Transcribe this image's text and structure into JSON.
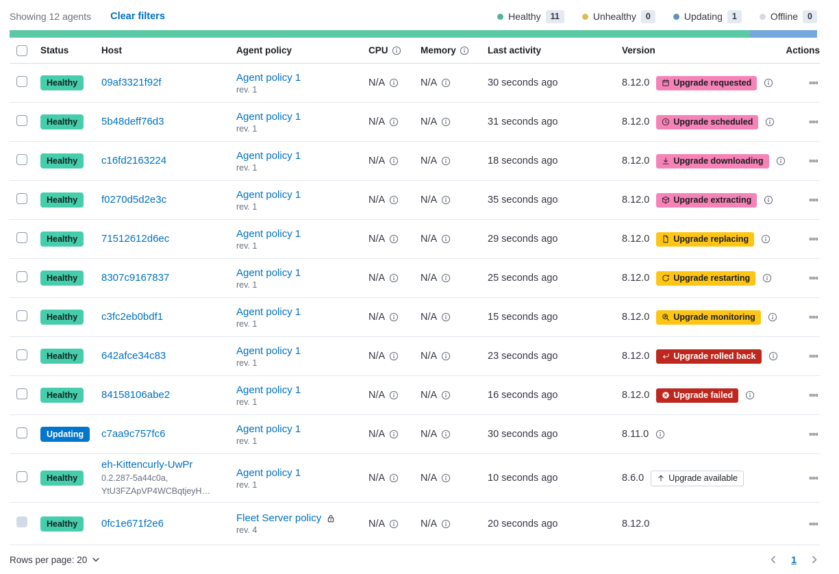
{
  "header": {
    "showing": "Showing 12 agents",
    "clear_filters": "Clear filters",
    "legend": [
      {
        "label": "Healthy",
        "count": "11",
        "color": "#54B399"
      },
      {
        "label": "Unhealthy",
        "count": "0",
        "color": "#D6BF57"
      },
      {
        "label": "Updating",
        "count": "1",
        "color": "#6092C0"
      },
      {
        "label": "Offline",
        "count": "0",
        "color": "#D3DAE6"
      }
    ],
    "health_bar": [
      {
        "color": "#5BC9A4",
        "fraction": 0.9167
      },
      {
        "color": "#74A7DB",
        "fraction": 0.0833
      }
    ]
  },
  "table": {
    "columns": [
      {
        "label": "",
        "type": "checkbox"
      },
      {
        "label": "Status"
      },
      {
        "label": "Host"
      },
      {
        "label": "Agent policy"
      },
      {
        "label": "CPU",
        "info": true
      },
      {
        "label": "Memory",
        "info": true
      },
      {
        "label": "Last activity"
      },
      {
        "label": "Version"
      },
      {
        "label": "Actions",
        "align": "right"
      }
    ],
    "rows": [
      {
        "status": "Healthy",
        "variant": "healthy",
        "host": "09af3321f92f",
        "host_sub": [],
        "policy": "Agent policy 1",
        "rev": "rev. 1",
        "locked": false,
        "cpu": "N/A",
        "memory": "N/A",
        "last_activity": "30 seconds ago",
        "version": "8.12.0",
        "badge": {
          "label": "Upgrade requested",
          "icon": "calendar",
          "variant": "accent"
        },
        "info": true,
        "checkbox_disabled": false
      },
      {
        "status": "Healthy",
        "variant": "healthy",
        "host": "5b48deff76d3",
        "host_sub": [],
        "policy": "Agent policy 1",
        "rev": "rev. 1",
        "locked": false,
        "cpu": "N/A",
        "memory": "N/A",
        "last_activity": "31 seconds ago",
        "version": "8.12.0",
        "badge": {
          "label": "Upgrade scheduled",
          "icon": "clock",
          "variant": "accent"
        },
        "info": true,
        "checkbox_disabled": false
      },
      {
        "status": "Healthy",
        "variant": "healthy",
        "host": "c16fd2163224",
        "host_sub": [],
        "policy": "Agent policy 1",
        "rev": "rev. 1",
        "locked": false,
        "cpu": "N/A",
        "memory": "N/A",
        "last_activity": "18 seconds ago",
        "version": "8.12.0",
        "badge": {
          "label": "Upgrade downloading",
          "icon": "download",
          "variant": "accent"
        },
        "info": true,
        "checkbox_disabled": false
      },
      {
        "status": "Healthy",
        "variant": "healthy",
        "host": "f0270d5d2e3c",
        "host_sub": [],
        "policy": "Agent policy 1",
        "rev": "rev. 1",
        "locked": false,
        "cpu": "N/A",
        "memory": "N/A",
        "last_activity": "35 seconds ago",
        "version": "8.12.0",
        "badge": {
          "label": "Upgrade extracting",
          "icon": "package",
          "variant": "accent"
        },
        "info": true,
        "checkbox_disabled": false
      },
      {
        "status": "Healthy",
        "variant": "healthy",
        "host": "71512612d6ec",
        "host_sub": [],
        "policy": "Agent policy 1",
        "rev": "rev. 1",
        "locked": false,
        "cpu": "N/A",
        "memory": "N/A",
        "last_activity": "29 seconds ago",
        "version": "8.12.0",
        "badge": {
          "label": "Upgrade replacing",
          "icon": "document",
          "variant": "warning"
        },
        "info": true,
        "checkbox_disabled": false
      },
      {
        "status": "Healthy",
        "variant": "healthy",
        "host": "8307c9167837",
        "host_sub": [],
        "policy": "Agent policy 1",
        "rev": "rev. 1",
        "locked": false,
        "cpu": "N/A",
        "memory": "N/A",
        "last_activity": "25 seconds ago",
        "version": "8.12.0",
        "badge": {
          "label": "Upgrade restarting",
          "icon": "refresh",
          "variant": "warning"
        },
        "info": true,
        "checkbox_disabled": false
      },
      {
        "status": "Healthy",
        "variant": "healthy",
        "host": "c3fc2eb0bdf1",
        "host_sub": [],
        "policy": "Agent policy 1",
        "rev": "rev. 1",
        "locked": false,
        "cpu": "N/A",
        "memory": "N/A",
        "last_activity": "15 seconds ago",
        "version": "8.12.0",
        "badge": {
          "label": "Upgrade monitoring",
          "icon": "inspect",
          "variant": "warning"
        },
        "info": true,
        "checkbox_disabled": false
      },
      {
        "status": "Healthy",
        "variant": "healthy",
        "host": "642afce34c83",
        "host_sub": [],
        "policy": "Agent policy 1",
        "rev": "rev. 1",
        "locked": false,
        "cpu": "N/A",
        "memory": "N/A",
        "last_activity": "23 seconds ago",
        "version": "8.12.0",
        "badge": {
          "label": "Upgrade rolled back",
          "icon": "return",
          "variant": "danger"
        },
        "info": true,
        "checkbox_disabled": false
      },
      {
        "status": "Healthy",
        "variant": "healthy",
        "host": "84158106abe2",
        "host_sub": [],
        "policy": "Agent policy 1",
        "rev": "rev. 1",
        "locked": false,
        "cpu": "N/A",
        "memory": "N/A",
        "last_activity": "16 seconds ago",
        "version": "8.12.0",
        "badge": {
          "label": "Upgrade failed",
          "icon": "error",
          "variant": "danger"
        },
        "info": true,
        "checkbox_disabled": false
      },
      {
        "status": "Updating",
        "variant": "updating",
        "host": "c7aa9c757fc6",
        "host_sub": [],
        "policy": "Agent policy 1",
        "rev": "rev. 1",
        "locked": false,
        "cpu": "N/A",
        "memory": "N/A",
        "last_activity": "30 seconds ago",
        "version": "8.11.0",
        "badge": null,
        "info": true,
        "checkbox_disabled": false
      },
      {
        "status": "Healthy",
        "variant": "healthy",
        "host": "eh-Kittencurly-UwPr",
        "host_sub": [
          "0.2.287-5a44c0a,",
          "YtU3FZApVP4WCBqtjeyH…"
        ],
        "policy": "Agent policy 1",
        "rev": "rev. 1",
        "locked": false,
        "cpu": "N/A",
        "memory": "N/A",
        "last_activity": "10 seconds ago",
        "version": "8.6.0",
        "badge": {
          "label": "Upgrade available",
          "icon": "arrow-up",
          "variant": "hollow"
        },
        "info": false,
        "checkbox_disabled": false
      },
      {
        "status": "Healthy",
        "variant": "healthy",
        "host": "0fc1e671f2e6",
        "host_sub": [],
        "policy": "Fleet Server policy",
        "rev": "rev. 4",
        "locked": true,
        "cpu": "N/A",
        "memory": "N/A",
        "last_activity": "20 seconds ago",
        "version": "8.12.0",
        "badge": null,
        "info": false,
        "checkbox_disabled": true
      }
    ]
  },
  "footer": {
    "rows_per_page": "Rows per page: 20",
    "page": "1"
  },
  "colors": {
    "link": "#0071C2",
    "healthy_badge": "#45CDAC",
    "updating_badge": "#0077CC",
    "accent_badge": "#F583B7",
    "warning_badge": "#FEC514",
    "danger_badge": "#BD271E"
  }
}
